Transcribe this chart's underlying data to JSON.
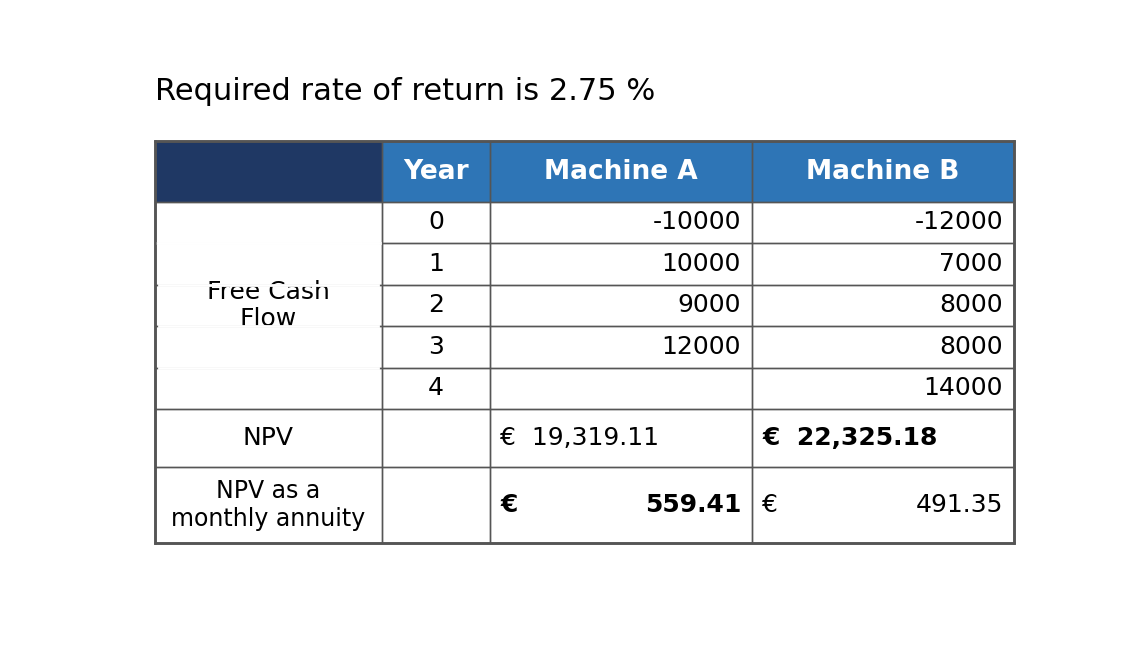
{
  "title": "Required rate of return is 2.75 %",
  "title_fontsize": 22,
  "header_bg_col1": "#1F3864",
  "header_bg_cols": "#2E75B6",
  "header_text_color": "#FFFFFF",
  "header_labels": [
    "",
    "Year",
    "Machine A",
    "Machine B"
  ],
  "row_label_col": "Free Cash\nFlow",
  "fcf_years": [
    "0",
    "1",
    "2",
    "3",
    "4"
  ],
  "fcf_machine_a": [
    "-10000",
    "10000",
    "9000",
    "12000",
    ""
  ],
  "fcf_machine_b": [
    "-12000",
    "7000",
    "8000",
    "8000",
    "14000"
  ],
  "npv_label": "NPV",
  "npv_a_euro": "€",
  "npv_a_val": "19,319.11",
  "npv_b_euro": "€",
  "npv_b_val": "22,325.18",
  "annuity_label": "NPV as a\nmonthly annuity",
  "annuity_a_euro": "€",
  "annuity_a_val": "559.41",
  "annuity_b_euro": "€",
  "annuity_b_val": "491.35",
  "border_color": "#555555",
  "cell_text_color": "#000000",
  "body_fontsize": 18,
  "header_fontsize": 19
}
